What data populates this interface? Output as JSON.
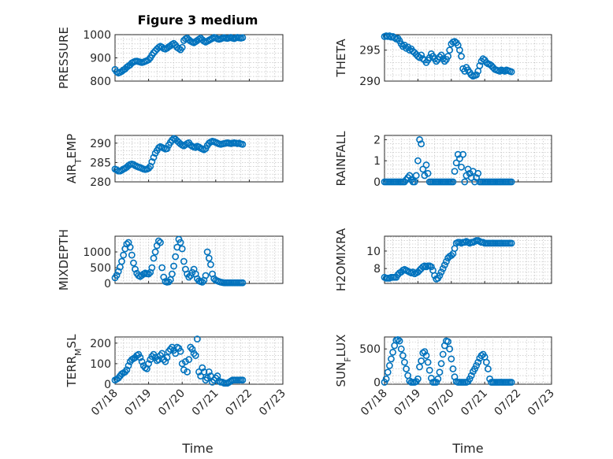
{
  "figure": {
    "title": "Figure 3 medium",
    "xlabel": "Time",
    "marker_color": "#0072BD",
    "x_ticks": [
      "07/18",
      "07/19",
      "07/20",
      "07/21",
      "07/22",
      "07/23"
    ]
  },
  "chart_data": [
    {
      "type": "scatter",
      "marker": "circle",
      "ylabel": "PRESSURE",
      "xlim": [
        0,
        5
      ],
      "ylim": [
        800,
        1000
      ],
      "yticks": [
        800,
        900,
        1000
      ],
      "grid": true,
      "x": [
        0.0,
        0.05,
        0.1,
        0.15,
        0.2,
        0.25,
        0.3,
        0.35,
        0.4,
        0.45,
        0.5,
        0.55,
        0.6,
        0.65,
        0.7,
        0.75,
        0.8,
        0.85,
        0.9,
        0.95,
        1.0,
        1.05,
        1.1,
        1.15,
        1.2,
        1.25,
        1.3,
        1.35,
        1.4,
        1.45,
        1.5,
        1.55,
        1.6,
        1.65,
        1.7,
        1.75,
        1.8,
        1.85,
        1.9,
        1.95,
        2.0,
        2.05,
        2.1,
        2.15,
        2.2,
        2.25,
        2.3,
        2.35,
        2.4,
        2.45,
        2.5,
        2.55,
        2.6,
        2.65,
        2.7,
        2.75,
        2.8,
        2.85,
        2.9,
        2.95,
        3.0,
        3.05,
        3.1,
        3.15,
        3.2,
        3.25,
        3.3,
        3.35,
        3.4,
        3.45,
        3.5,
        3.55,
        3.6,
        3.65,
        3.7,
        3.75,
        3.8
      ],
      "y": [
        850,
        840,
        835,
        838,
        842,
        848,
        852,
        860,
        865,
        870,
        878,
        882,
        885,
        886,
        884,
        882,
        880,
        882,
        885,
        888,
        892,
        900,
        912,
        922,
        930,
        938,
        945,
        950,
        946,
        940,
        938,
        942,
        948,
        952,
        958,
        962,
        955,
        945,
        940,
        935,
        945,
        975,
        982,
        985,
        978,
        972,
        968,
        965,
        970,
        975,
        980,
        985,
        978,
        972,
        968,
        972,
        976,
        980,
        984,
        988,
        986,
        982,
        980,
        982,
        985,
        987,
        985,
        984,
        986,
        988,
        985,
        983,
        986,
        988,
        986,
        985,
        987
      ]
    },
    {
      "type": "scatter",
      "marker": "circle",
      "ylabel": "THETA",
      "xlim": [
        0,
        5
      ],
      "ylim": [
        290,
        297.5
      ],
      "yticks": [
        290,
        295
      ],
      "grid": true,
      "x": [
        0.0,
        0.05,
        0.1,
        0.15,
        0.2,
        0.25,
        0.3,
        0.35,
        0.4,
        0.45,
        0.5,
        0.55,
        0.6,
        0.65,
        0.7,
        0.75,
        0.8,
        0.85,
        0.9,
        0.95,
        1.0,
        1.05,
        1.1,
        1.15,
        1.2,
        1.25,
        1.3,
        1.35,
        1.4,
        1.45,
        1.5,
        1.55,
        1.6,
        1.65,
        1.7,
        1.75,
        1.8,
        1.85,
        1.9,
        1.95,
        2.0,
        2.05,
        2.1,
        2.15,
        2.2,
        2.25,
        2.3,
        2.35,
        2.4,
        2.45,
        2.5,
        2.55,
        2.6,
        2.65,
        2.7,
        2.75,
        2.8,
        2.85,
        2.9,
        2.95,
        3.0,
        3.05,
        3.1,
        3.15,
        3.2,
        3.25,
        3.3,
        3.35,
        3.4,
        3.45,
        3.5,
        3.55,
        3.6,
        3.65,
        3.7,
        3.75,
        3.8
      ],
      "y": [
        297.2,
        297.3,
        297.2,
        297.3,
        297.1,
        297.2,
        297.0,
        296.8,
        296.9,
        296.5,
        296.0,
        295.6,
        295.8,
        295.3,
        295.5,
        295.0,
        295.2,
        294.8,
        294.6,
        294.3,
        294.0,
        293.8,
        294.2,
        293.6,
        293.4,
        293.0,
        293.4,
        293.8,
        294.4,
        294.0,
        293.6,
        293.2,
        293.5,
        293.9,
        294.2,
        293.6,
        293.2,
        293.5,
        294.0,
        295.0,
        296.0,
        296.3,
        296.4,
        296.2,
        295.8,
        295.0,
        294.0,
        292.0,
        291.6,
        292.2,
        291.8,
        291.4,
        291.0,
        290.8,
        290.9,
        291.0,
        291.6,
        292.5,
        293.2,
        293.6,
        293.4,
        293.0,
        292.8,
        292.7,
        292.5,
        292.2,
        291.9,
        291.8,
        291.7,
        291.6,
        291.8,
        291.7,
        291.6,
        291.8,
        291.7,
        291.6,
        291.5
      ]
    },
    {
      "type": "scatter",
      "marker": "circle",
      "ylabel": "AIR_TEMP",
      "xlim": [
        0,
        5
      ],
      "ylim": [
        280,
        292
      ],
      "yticks": [
        280,
        285,
        290
      ],
      "grid": true,
      "x": [
        0.0,
        0.05,
        0.1,
        0.15,
        0.2,
        0.25,
        0.3,
        0.35,
        0.4,
        0.45,
        0.5,
        0.55,
        0.6,
        0.65,
        0.7,
        0.75,
        0.8,
        0.85,
        0.9,
        0.95,
        1.0,
        1.05,
        1.1,
        1.15,
        1.2,
        1.25,
        1.3,
        1.35,
        1.4,
        1.45,
        1.5,
        1.55,
        1.6,
        1.65,
        1.7,
        1.75,
        1.8,
        1.85,
        1.9,
        1.95,
        2.0,
        2.05,
        2.1,
        2.15,
        2.2,
        2.25,
        2.3,
        2.35,
        2.4,
        2.45,
        2.5,
        2.55,
        2.6,
        2.65,
        2.7,
        2.75,
        2.8,
        2.85,
        2.9,
        2.95,
        3.0,
        3.05,
        3.1,
        3.15,
        3.2,
        3.25,
        3.3,
        3.35,
        3.4,
        3.45,
        3.5,
        3.55,
        3.6,
        3.65,
        3.7,
        3.75,
        3.8
      ],
      "y": [
        283.3,
        283.1,
        282.8,
        282.8,
        283.0,
        283.3,
        283.5,
        283.8,
        284.2,
        284.5,
        284.6,
        284.5,
        284.2,
        284.0,
        283.8,
        283.7,
        283.5,
        283.3,
        283.2,
        283.3,
        283.5,
        284.0,
        285.2,
        286.3,
        287.4,
        288.1,
        288.8,
        289.1,
        288.9,
        288.7,
        288.5,
        288.6,
        289.5,
        290.2,
        290.8,
        291.2,
        291.0,
        290.6,
        290.2,
        289.8,
        289.5,
        289.3,
        289.6,
        289.9,
        290.1,
        289.5,
        289.2,
        289.0,
        288.9,
        289.2,
        289.0,
        288.7,
        288.5,
        288.3,
        288.6,
        289.4,
        290.0,
        290.3,
        290.5,
        290.4,
        290.2,
        290.0,
        289.8,
        289.7,
        289.8,
        289.9,
        290.0,
        290.1,
        290.0,
        289.9,
        290.0,
        290.1,
        290.0,
        289.9,
        290.0,
        289.8,
        289.7
      ]
    },
    {
      "type": "scatter",
      "marker": "circle",
      "ylabel": "RAINFALL",
      "xlim": [
        0,
        5
      ],
      "ylim": [
        0,
        2.2
      ],
      "yticks": [
        0,
        1,
        2
      ],
      "grid": true,
      "x": [
        0.0,
        0.05,
        0.1,
        0.15,
        0.2,
        0.25,
        0.3,
        0.35,
        0.4,
        0.45,
        0.5,
        0.55,
        0.6,
        0.65,
        0.7,
        0.75,
        0.8,
        0.85,
        0.9,
        0.95,
        1.0,
        1.05,
        1.1,
        1.15,
        1.2,
        1.25,
        1.3,
        1.35,
        1.4,
        1.45,
        1.5,
        1.55,
        1.6,
        1.65,
        1.7,
        1.75,
        1.8,
        1.85,
        1.9,
        1.95,
        2.0,
        2.05,
        2.1,
        2.15,
        2.2,
        2.25,
        2.3,
        2.35,
        2.4,
        2.45,
        2.5,
        2.55,
        2.6,
        2.65,
        2.7,
        2.75,
        2.8,
        2.85,
        2.9,
        2.95,
        3.0,
        3.05,
        3.1,
        3.15,
        3.2,
        3.25,
        3.3,
        3.35,
        3.4,
        3.45,
        3.5,
        3.55,
        3.6,
        3.65,
        3.7,
        3.75,
        3.8
      ],
      "y": [
        0,
        0,
        0,
        0,
        0,
        0,
        0,
        0,
        0,
        0,
        0,
        0,
        0,
        0.1,
        0.2,
        0.3,
        0.1,
        0,
        0,
        0.3,
        1.0,
        2.0,
        1.8,
        0.6,
        0.3,
        0.8,
        0.4,
        0,
        0,
        0,
        0,
        0,
        0,
        0,
        0,
        0,
        0,
        0,
        0,
        0,
        0,
        0,
        0.5,
        0.9,
        1.3,
        1.1,
        0.7,
        1.3,
        0,
        0.3,
        0.6,
        0.4,
        0.2,
        0.5,
        0,
        0.2,
        0.4,
        0,
        0,
        0,
        0,
        0,
        0,
        0,
        0,
        0,
        0,
        0,
        0,
        0,
        0,
        0,
        0,
        0,
        0,
        0,
        0
      ]
    },
    {
      "type": "scatter",
      "marker": "circle",
      "ylabel": "MIXDEPTH",
      "xlim": [
        0,
        5
      ],
      "ylim": [
        0,
        1500
      ],
      "yticks": [
        0,
        500,
        1000
      ],
      "grid": true,
      "x": [
        0.0,
        0.05,
        0.1,
        0.15,
        0.2,
        0.25,
        0.3,
        0.35,
        0.4,
        0.45,
        0.5,
        0.55,
        0.6,
        0.65,
        0.7,
        0.75,
        0.8,
        0.85,
        0.9,
        0.95,
        1.0,
        1.05,
        1.1,
        1.15,
        1.2,
        1.25,
        1.3,
        1.35,
        1.4,
        1.45,
        1.5,
        1.55,
        1.6,
        1.65,
        1.7,
        1.75,
        1.8,
        1.85,
        1.9,
        1.95,
        2.0,
        2.05,
        2.1,
        2.15,
        2.2,
        2.25,
        2.3,
        2.35,
        2.4,
        2.45,
        2.5,
        2.55,
        2.6,
        2.65,
        2.7,
        2.75,
        2.8,
        2.85,
        2.9,
        2.95,
        3.0,
        3.05,
        3.1,
        3.15,
        3.2,
        3.25,
        3.3,
        3.35,
        3.4,
        3.45,
        3.5,
        3.55,
        3.6,
        3.65,
        3.7,
        3.75,
        3.8
      ],
      "y": [
        180,
        260,
        380,
        520,
        700,
        900,
        1100,
        1250,
        1300,
        1150,
        900,
        650,
        450,
        320,
        250,
        220,
        260,
        300,
        330,
        310,
        300,
        350,
        500,
        800,
        1000,
        1200,
        1350,
        1300,
        500,
        200,
        60,
        40,
        50,
        120,
        300,
        550,
        850,
        1150,
        1400,
        1300,
        1100,
        700,
        450,
        300,
        200,
        250,
        350,
        450,
        300,
        150,
        80,
        60,
        40,
        100,
        250,
        1000,
        800,
        600,
        300,
        150,
        100,
        80,
        60,
        40,
        30,
        20,
        20,
        20,
        20,
        20,
        20,
        20,
        20,
        20,
        20,
        20,
        20
      ]
    },
    {
      "type": "scatter",
      "marker": "circle",
      "ylabel": "H2OMIXRA",
      "xlim": [
        0,
        5
      ],
      "ylim": [
        6.3,
        11.7
      ],
      "yticks": [
        8,
        10
      ],
      "grid": true,
      "x": [
        0.0,
        0.05,
        0.1,
        0.15,
        0.2,
        0.25,
        0.3,
        0.35,
        0.4,
        0.45,
        0.5,
        0.55,
        0.6,
        0.65,
        0.7,
        0.75,
        0.8,
        0.85,
        0.9,
        0.95,
        1.0,
        1.05,
        1.1,
        1.15,
        1.2,
        1.25,
        1.3,
        1.35,
        1.4,
        1.45,
        1.5,
        1.55,
        1.6,
        1.65,
        1.7,
        1.75,
        1.8,
        1.85,
        1.9,
        1.95,
        2.0,
        2.05,
        2.1,
        2.15,
        2.2,
        2.25,
        2.3,
        2.35,
        2.4,
        2.45,
        2.5,
        2.55,
        2.6,
        2.65,
        2.7,
        2.75,
        2.8,
        2.85,
        2.9,
        2.95,
        3.0,
        3.05,
        3.1,
        3.15,
        3.2,
        3.25,
        3.3,
        3.35,
        3.4,
        3.45,
        3.5,
        3.55,
        3.6,
        3.65,
        3.7,
        3.75,
        3.8
      ],
      "y": [
        7.0,
        6.9,
        6.9,
        6.9,
        7.0,
        7.0,
        7.0,
        7.0,
        7.3,
        7.5,
        7.6,
        7.8,
        7.9,
        7.8,
        7.7,
        7.6,
        7.5,
        7.6,
        7.4,
        7.5,
        7.6,
        7.8,
        8.0,
        8.2,
        8.3,
        8.2,
        8.3,
        8.3,
        8.2,
        7.8,
        7.2,
        6.8,
        6.9,
        7.2,
        7.6,
        8.0,
        8.4,
        8.8,
        9.2,
        9.4,
        9.5,
        9.7,
        10.3,
        10.9,
        11.0,
        11.0,
        10.9,
        11.0,
        11.0,
        11.1,
        11.0,
        10.9,
        11.0,
        11.0,
        11.1,
        11.2,
        11.2,
        11.1,
        11.0,
        11.0,
        10.9,
        10.9,
        10.9,
        10.9,
        10.9,
        10.9,
        10.9,
        10.9,
        10.9,
        10.9,
        10.9,
        10.9,
        10.9,
        10.9,
        10.9,
        10.9,
        10.9
      ]
    },
    {
      "type": "scatter",
      "marker": "circle",
      "ylabel": "TERR_MSL",
      "xlim": [
        0,
        5
      ],
      "ylim": [
        0,
        230
      ],
      "yticks": [
        0,
        100,
        200
      ],
      "grid": true,
      "x": [
        0.0,
        0.05,
        0.1,
        0.15,
        0.2,
        0.25,
        0.3,
        0.35,
        0.4,
        0.45,
        0.5,
        0.55,
        0.6,
        0.65,
        0.7,
        0.75,
        0.8,
        0.85,
        0.9,
        0.95,
        1.0,
        1.05,
        1.1,
        1.15,
        1.2,
        1.25,
        1.3,
        1.35,
        1.4,
        1.45,
        1.5,
        1.55,
        1.6,
        1.65,
        1.7,
        1.75,
        1.8,
        1.85,
        1.9,
        1.95,
        2.0,
        2.05,
        2.1,
        2.15,
        2.2,
        2.25,
        2.3,
        2.35,
        2.4,
        2.45,
        2.5,
        2.55,
        2.6,
        2.65,
        2.7,
        2.75,
        2.8,
        2.85,
        2.9,
        2.95,
        3.0,
        3.05,
        3.1,
        3.15,
        3.2,
        3.25,
        3.3,
        3.35,
        3.4,
        3.45,
        3.5,
        3.55,
        3.6,
        3.65,
        3.7,
        3.75,
        3.8
      ],
      "y": [
        20,
        25,
        30,
        40,
        50,
        55,
        60,
        70,
        90,
        110,
        120,
        125,
        130,
        140,
        145,
        130,
        110,
        90,
        80,
        75,
        100,
        120,
        135,
        145,
        130,
        115,
        120,
        140,
        150,
        120,
        110,
        130,
        160,
        170,
        180,
        165,
        150,
        180,
        175,
        160,
        100,
        70,
        110,
        60,
        120,
        180,
        170,
        150,
        140,
        220,
        60,
        40,
        80,
        60,
        20,
        30,
        60,
        40,
        10,
        20,
        30,
        40,
        15,
        10,
        10,
        5,
        5,
        5,
        10,
        15,
        20,
        20,
        20,
        20,
        20,
        20,
        20
      ]
    },
    {
      "type": "scatter",
      "marker": "circle",
      "ylabel": "SUN_FLUX",
      "xlim": [
        0,
        5
      ],
      "ylim": [
        -30,
        680
      ],
      "yticks": [
        0,
        500
      ],
      "grid": true,
      "x": [
        0.0,
        0.05,
        0.1,
        0.15,
        0.2,
        0.25,
        0.3,
        0.35,
        0.4,
        0.45,
        0.5,
        0.55,
        0.6,
        0.65,
        0.7,
        0.75,
        0.8,
        0.85,
        0.9,
        0.95,
        1.0,
        1.05,
        1.1,
        1.15,
        1.2,
        1.25,
        1.3,
        1.35,
        1.4,
        1.45,
        1.5,
        1.55,
        1.6,
        1.65,
        1.7,
        1.75,
        1.8,
        1.85,
        1.9,
        1.95,
        2.0,
        2.05,
        2.1,
        2.15,
        2.2,
        2.25,
        2.3,
        2.35,
        2.4,
        2.45,
        2.5,
        2.55,
        2.6,
        2.65,
        2.7,
        2.75,
        2.8,
        2.85,
        2.9,
        2.95,
        3.0,
        3.05,
        3.1,
        3.15,
        3.2,
        3.25,
        3.3,
        3.35,
        3.4,
        3.45,
        3.5,
        3.55,
        3.6,
        3.65,
        3.7,
        3.75,
        3.8
      ],
      "y": [
        0,
        50,
        150,
        250,
        350,
        450,
        550,
        630,
        640,
        620,
        500,
        400,
        300,
        200,
        100,
        20,
        0,
        0,
        0,
        10,
        50,
        230,
        320,
        440,
        460,
        400,
        300,
        180,
        60,
        0,
        0,
        0,
        50,
        150,
        280,
        420,
        550,
        620,
        610,
        500,
        350,
        200,
        80,
        10,
        0,
        0,
        0,
        0,
        0,
        0,
        10,
        50,
        100,
        160,
        200,
        250,
        300,
        360,
        400,
        420,
        380,
        300,
        200,
        50,
        0,
        0,
        0,
        0,
        0,
        0,
        0,
        0,
        0,
        0,
        0,
        0,
        0
      ]
    }
  ]
}
